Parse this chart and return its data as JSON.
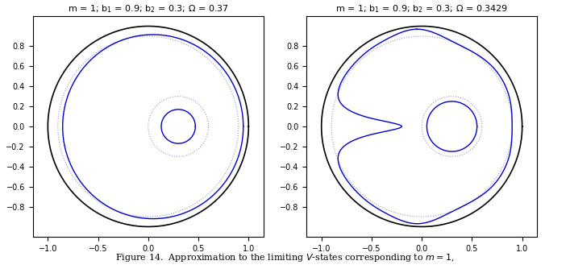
{
  "m": 1,
  "b1": 0.9,
  "b2": 0.3,
  "omega1": 0.37,
  "omega2": 0.3429,
  "title1": "m = 1; b$_1$ = 0.9; b$_2$ = 0.3; $\\Omega$ = 0.37",
  "title2": "m = 1; b$_1$ = 0.9; b$_2$ = 0.3; $\\Omega$ = 0.3429",
  "figsize": [
    7.07,
    3.34
  ],
  "dpi": 100,
  "blue_color": "#0000CD",
  "black_color": "#000000",
  "dotted_color": "#9999CC",
  "xlim": [
    -1.15,
    1.15
  ],
  "ylim": [
    -1.1,
    1.1
  ],
  "xticks": [
    -1,
    -0.5,
    0,
    0.5,
    1
  ],
  "yticks": [
    -0.8,
    -0.6,
    -0.4,
    -0.2,
    0,
    0.2,
    0.4,
    0.6,
    0.8
  ],
  "caption": "Figure 14.  Approximation to the limiting $V$-states corresponding to $m = 1$,"
}
